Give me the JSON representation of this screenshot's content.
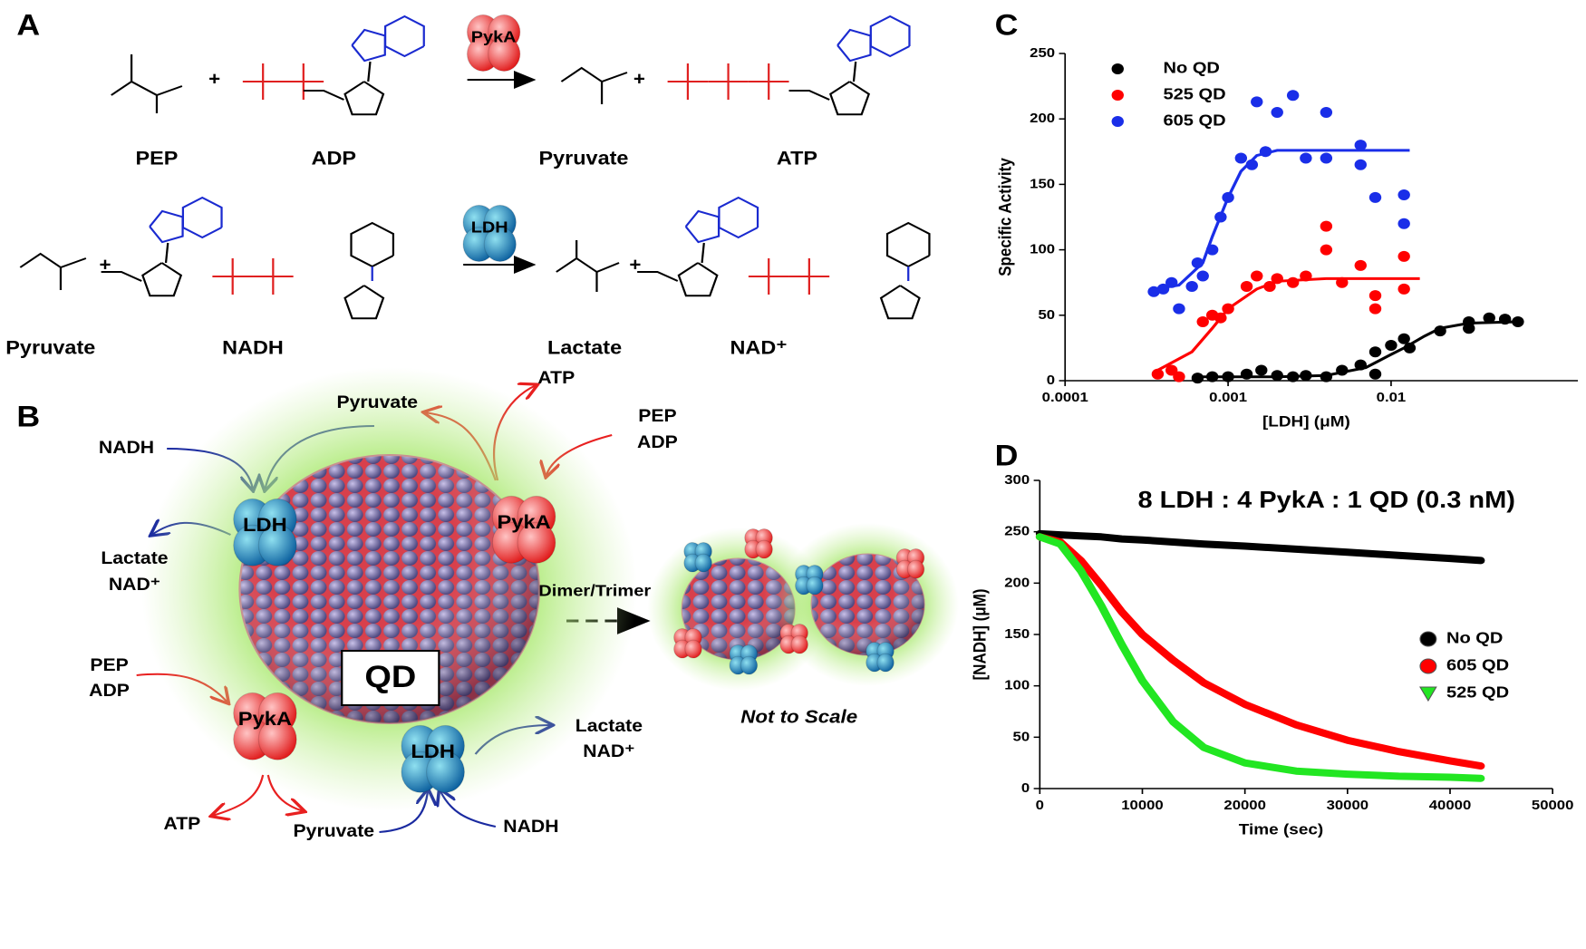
{
  "panel_labels": [
    "A",
    "B",
    "C",
    "D"
  ],
  "reactions": {
    "plus": "+",
    "enzymes": [
      "PykA",
      "LDH"
    ],
    "row_1": [
      "PEP",
      "ADP",
      "Pyruvate",
      "ATP"
    ],
    "row_2": [
      "Pyruvate",
      "NADH",
      "Lactate",
      "NAD⁺"
    ]
  },
  "diagram": {
    "core": "QD",
    "enzymes": [
      "LDH",
      "PykA",
      "PykA",
      "LDH"
    ],
    "labels": [
      "Pyruvate",
      "NADH",
      "Lactate",
      "NAD⁺",
      "ATP",
      "PEP",
      "ADP",
      "PEP",
      "ADP",
      "Lactate",
      "NAD⁺",
      "ATP",
      "Pyruvate",
      "NADH"
    ],
    "arrow_label": "Dimer/Trimer",
    "note": "Not to Scale"
  },
  "chart_data": [
    {
      "type": "scatter",
      "x_label": "[LDH] (μM)",
      "y_label": "Specific Activity",
      "log_x": true,
      "xlim": [
        0.0001,
        0.14
      ],
      "xticks": [
        0.0001,
        0.001,
        0.01
      ],
      "ylim": [
        0,
        250
      ],
      "yticks": [
        0,
        50,
        100,
        150,
        200,
        250
      ],
      "legend": "upper left",
      "series": [
        {
          "name": "No QD",
          "color": "#000000",
          "x": [
            0.00065,
            0.0008,
            0.001,
            0.0013,
            0.0016,
            0.002,
            0.0025,
            0.003,
            0.004,
            0.005,
            0.0065,
            0.008,
            0.008,
            0.01,
            0.012,
            0.013,
            0.02,
            0.03,
            0.03,
            0.04,
            0.05,
            0.06
          ],
          "values": [
            2,
            3,
            3,
            5,
            8,
            4,
            3,
            4,
            3,
            8,
            12,
            5,
            22,
            27,
            32,
            25,
            38,
            45,
            40,
            48,
            47,
            45
          ]
        },
        {
          "name": "525 QD",
          "color": "#ff0000",
          "x": [
            0.00037,
            0.00045,
            0.0005,
            0.0007,
            0.0008,
            0.0009,
            0.001,
            0.0013,
            0.0015,
            0.0018,
            0.002,
            0.0025,
            0.003,
            0.004,
            0.004,
            0.005,
            0.0065,
            0.008,
            0.008,
            0.012,
            0.012
          ],
          "values": [
            5,
            8,
            3,
            45,
            50,
            48,
            55,
            72,
            80,
            72,
            78,
            75,
            80,
            118,
            100,
            75,
            88,
            65,
            55,
            95,
            70
          ]
        },
        {
          "name": "605 QD",
          "color": "#1a2ee8",
          "x": [
            0.00035,
            0.0004,
            0.00045,
            0.0005,
            0.0006,
            0.00065,
            0.0007,
            0.0008,
            0.0009,
            0.001,
            0.0012,
            0.0014,
            0.0015,
            0.0017,
            0.002,
            0.0025,
            0.003,
            0.004,
            0.004,
            0.0065,
            0.0065,
            0.008,
            0.012,
            0.012
          ],
          "values": [
            68,
            70,
            75,
            55,
            72,
            90,
            80,
            100,
            125,
            140,
            170,
            165,
            213,
            175,
            205,
            218,
            170,
            205,
            170,
            180,
            165,
            140,
            142,
            120
          ]
        }
      ],
      "fits": [
        {
          "color": "#000000",
          "x": [
            0.00065,
            0.002,
            0.004,
            0.007,
            0.01,
            0.012,
            0.016,
            0.02,
            0.03,
            0.06
          ],
          "values": [
            3,
            3,
            4,
            10,
            20,
            25,
            34,
            40,
            44,
            45
          ]
        },
        {
          "color": "#ff0000",
          "x": [
            0.00037,
            0.0006,
            0.0008,
            0.001,
            0.0015,
            0.002,
            0.004,
            0.015
          ],
          "values": [
            8,
            22,
            40,
            55,
            70,
            76,
            78,
            78
          ]
        },
        {
          "color": "#1a2ee8",
          "x": [
            0.00035,
            0.0005,
            0.0007,
            0.0008,
            0.001,
            0.0012,
            0.0015,
            0.002,
            0.013
          ],
          "values": [
            70,
            73,
            90,
            110,
            140,
            160,
            172,
            176,
            176
          ]
        }
      ]
    },
    {
      "type": "line",
      "title": "8 LDH : 4 PykA : 1 QD (0.3 nM)",
      "x_label": "Time (sec)",
      "y_label": "[NADH] (μM)",
      "xlim": [
        0,
        50000
      ],
      "xticks": [
        0,
        10000,
        20000,
        30000,
        40000,
        50000
      ],
      "ylim": [
        0,
        300
      ],
      "yticks": [
        0,
        50,
        100,
        150,
        200,
        250,
        300
      ],
      "legend": "center right",
      "x": [
        0,
        2000,
        4000,
        6000,
        8000,
        10000,
        13000,
        16000,
        20000,
        25000,
        30000,
        35000,
        40000,
        43000
      ],
      "series": [
        {
          "name": "No QD",
          "color": "#000000",
          "marker": "circle",
          "values": [
            248,
            247,
            246,
            245,
            243,
            242,
            240,
            238,
            236,
            233,
            230,
            227,
            224,
            222
          ]
        },
        {
          "name": "605 QD",
          "color": "#ff0000",
          "marker": "circle",
          "values": [
            245,
            240,
            222,
            198,
            172,
            150,
            125,
            103,
            82,
            62,
            47,
            36,
            27,
            22
          ]
        },
        {
          "name": "525 QD",
          "color": "#22e622",
          "marker": "triangle",
          "values": [
            245,
            238,
            212,
            178,
            140,
            105,
            65,
            40,
            25,
            17,
            14,
            12,
            11,
            10
          ]
        }
      ]
    }
  ]
}
